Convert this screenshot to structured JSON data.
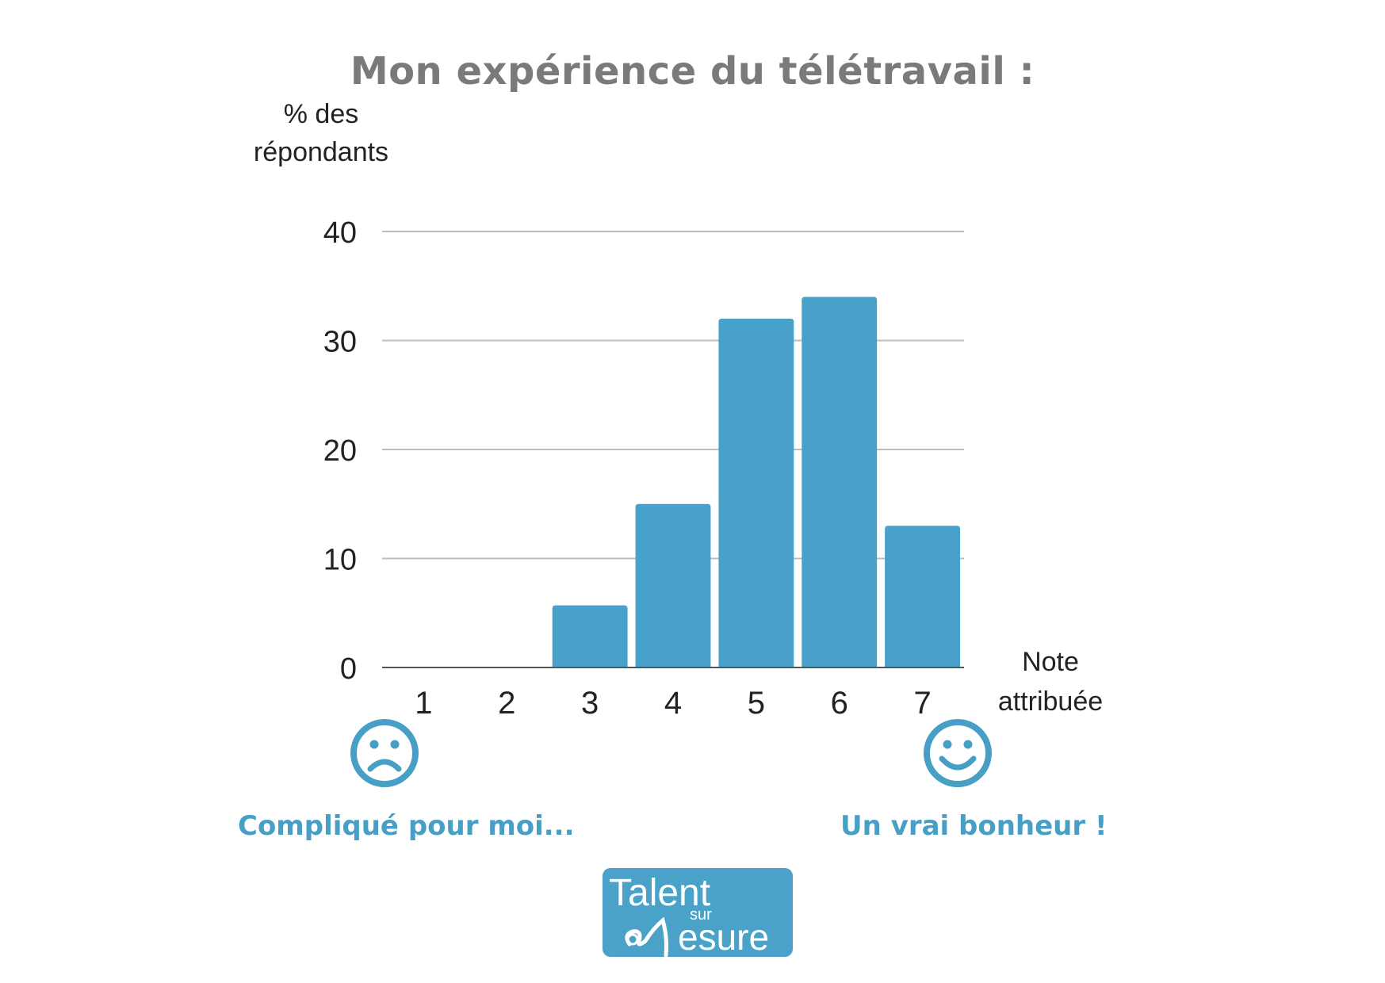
{
  "chart_data": {
    "type": "bar",
    "title": "Mon expérience du télétravail :",
    "ylabel": "% des répondants",
    "ylabel_lines": [
      "% des",
      "répondants"
    ],
    "xlabel": "Note attribuée",
    "xlabel_lines": [
      "Note",
      "attribuée"
    ],
    "categories": [
      "1",
      "2",
      "3",
      "4",
      "5",
      "6",
      "7"
    ],
    "values": [
      0,
      0,
      5.7,
      15,
      32,
      34,
      13
    ],
    "ylim": [
      0,
      40
    ],
    "yticks": [
      0,
      10,
      20,
      30,
      40
    ],
    "grid": true,
    "bar_color": "#47a1c8"
  },
  "annotations": {
    "left_caption": "Compliqué pour moi...",
    "right_caption": "Un vrai bonheur !",
    "left_icon": "sad-face-icon",
    "right_icon": "happy-face-icon",
    "accent_color": "#479fc6"
  },
  "logo": {
    "line1": "Talent",
    "line2": "sur",
    "line3": "esure"
  }
}
